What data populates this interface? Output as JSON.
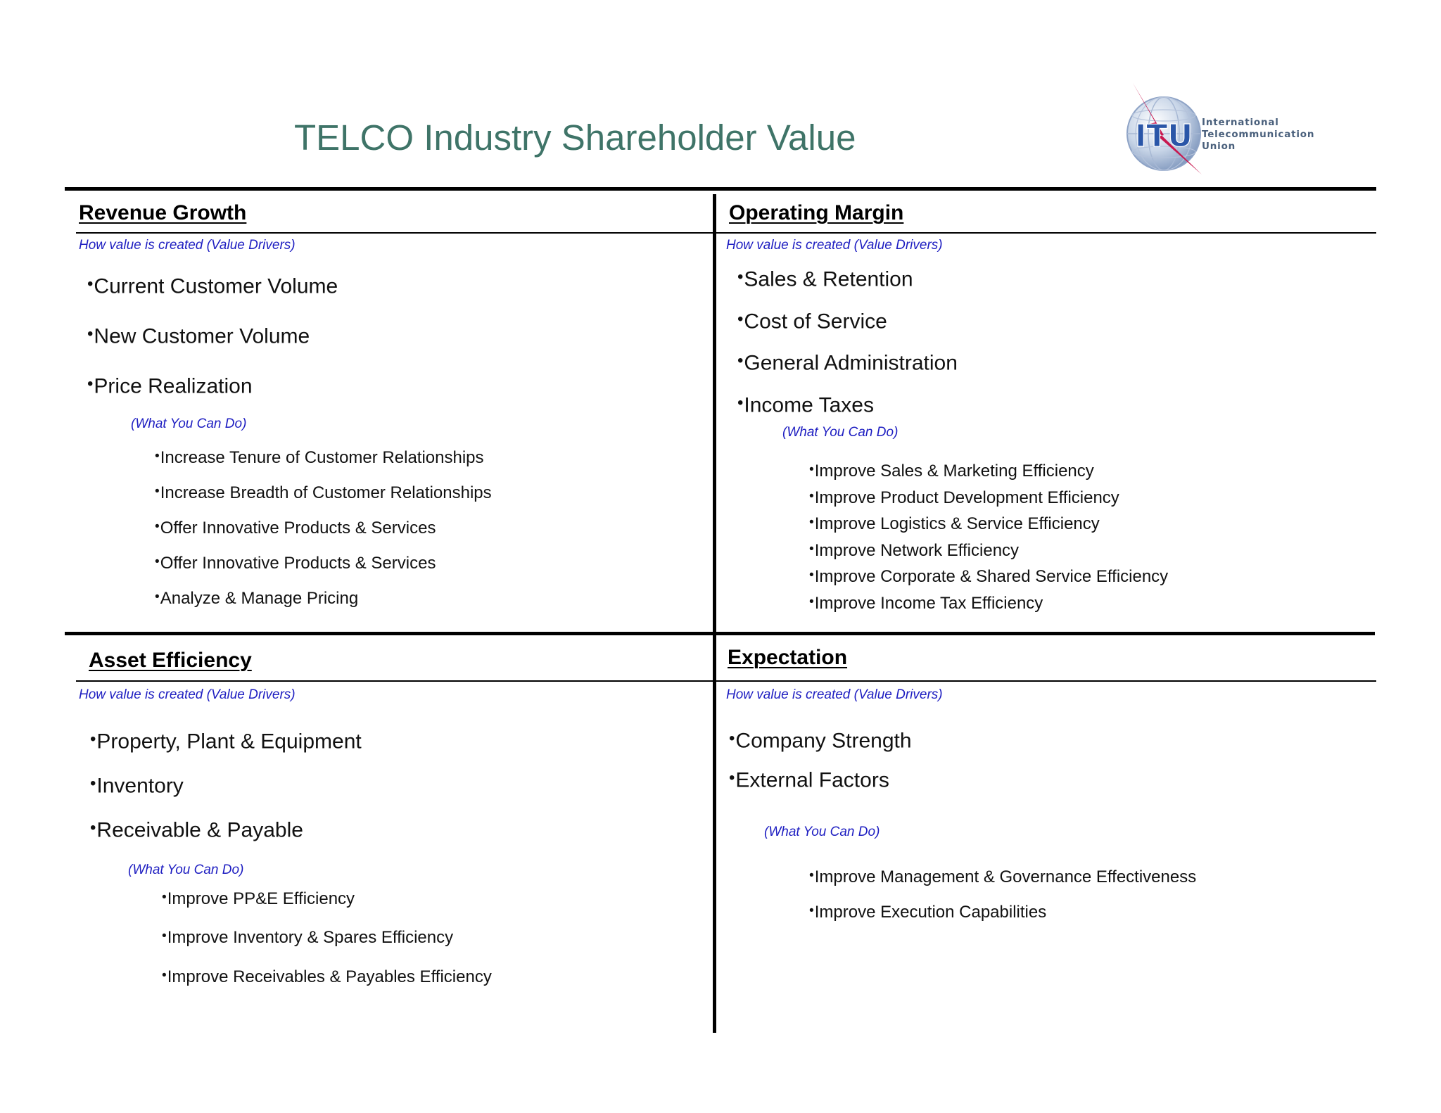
{
  "title": "TELCO Industry Shareholder Value",
  "logo": {
    "mark": "ITU",
    "lines": [
      "International",
      "Telecommunication",
      "Union"
    ]
  },
  "quadrants": {
    "revenue_growth": {
      "heading": "Revenue Growth",
      "drivers_label": "How value is created (Value Drivers)",
      "drivers": [
        "Current Customer Volume",
        "New Customer Volume",
        "Price Realization"
      ],
      "actions_label": "(What You Can Do)",
      "actions": [
        "Increase Tenure of Customer Relationships",
        "Increase Breadth of Customer Relationships",
        "Offer Innovative Products & Services",
        "Offer Innovative Products & Services",
        "Analyze & Manage Pricing"
      ]
    },
    "operating_margin": {
      "heading": "Operating Margin",
      "drivers_label": "How value is created (Value Drivers)",
      "drivers": [
        "Sales & Retention",
        "Cost of Service",
        "General Administration",
        "Income Taxes"
      ],
      "actions_label": "(What You Can Do)",
      "actions": [
        "Improve Sales & Marketing Efficiency",
        "Improve Product Development Efficiency",
        "Improve Logistics & Service Efficiency",
        "Improve Network Efficiency",
        "Improve Corporate & Shared Service Efficiency",
        "Improve Income Tax Efficiency"
      ]
    },
    "asset_efficiency": {
      "heading": "Asset Efficiency",
      "drivers_label": "How value is created (Value Drivers)",
      "drivers": [
        "Property, Plant & Equipment",
        "Inventory",
        "Receivable & Payable"
      ],
      "actions_label": "(What You Can Do)",
      "actions": [
        "Improve PP&E Efficiency",
        "Improve Inventory & Spares Efficiency",
        "Improve Receivables & Payables Efficiency"
      ]
    },
    "expectation": {
      "heading": "Expectation",
      "drivers_label": "How value is created (Value Drivers)",
      "drivers": [
        "Company Strength",
        "External Factors"
      ],
      "actions_label": "(What You Can Do)",
      "actions": [
        "Improve Management & Governance Effectiveness",
        "Improve Execution Capabilities"
      ]
    }
  }
}
